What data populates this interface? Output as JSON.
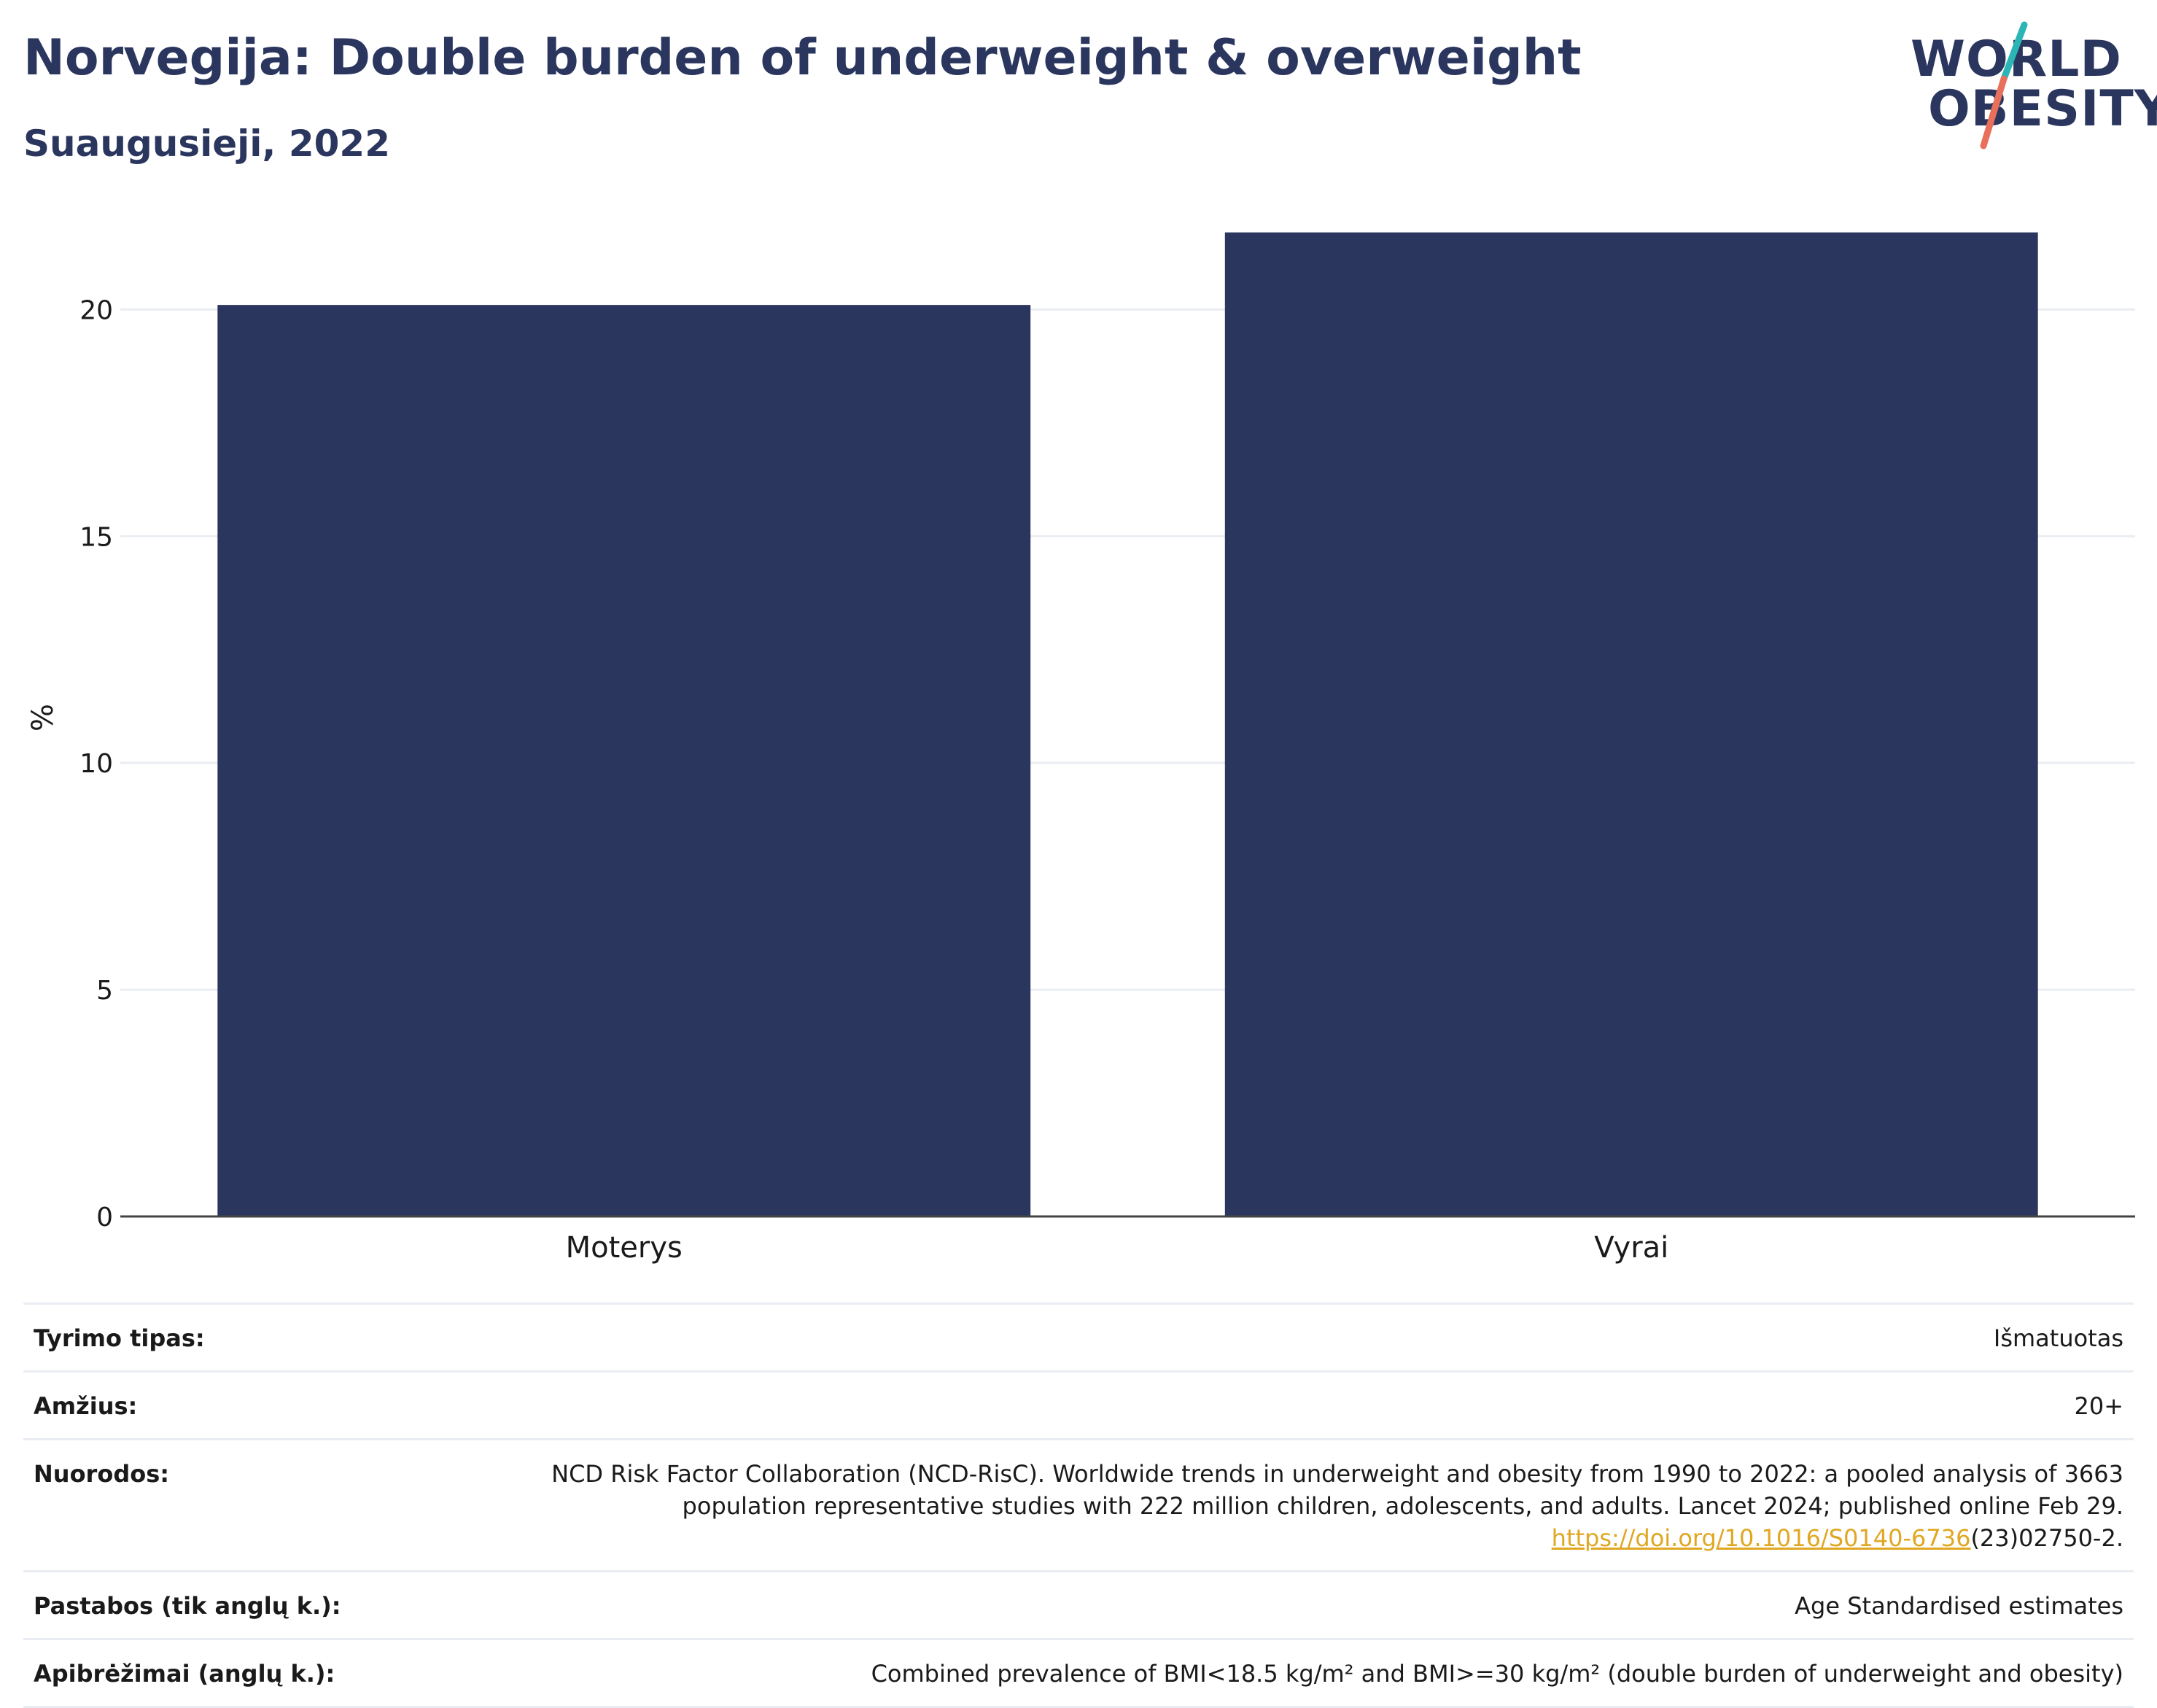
{
  "header": {
    "title": "Norvegija: Double burden of underweight & overweight",
    "subtitle": "Suaugusieji, 2022"
  },
  "logo": {
    "line1": "WORLD",
    "line2": "OBESITY",
    "accent_colors": [
      "#2bb5b5",
      "#e8705a"
    ]
  },
  "chart_data": {
    "type": "bar",
    "categories": [
      "Moterys",
      "Vyrai"
    ],
    "values": [
      20.1,
      21.7
    ],
    "ylabel": "%",
    "ylim": [
      0,
      22
    ],
    "yticks": [
      0,
      5,
      10,
      15,
      20
    ],
    "grid": true,
    "bar_color": "#2b365f"
  },
  "info": {
    "rows": [
      {
        "label": "Tyrimo tipas:",
        "value": "Išmatuotas"
      },
      {
        "label": "Amžius:",
        "value": "20+"
      },
      {
        "label": "Nuorodos:",
        "value": "NCD Risk Factor Collaboration (NCD-RisC). Worldwide trends in underweight and obesity from 1990 to 2022: a pooled analysis of 3663 population representative studies with 222 million children, adolescents, and adults. Lancet 2024; published online Feb 29.",
        "link": "https://doi.org/10.1016/S0140-6736",
        "link_suffix": "(23)02750-2."
      },
      {
        "label": "Pastabos (tik anglų k.):",
        "value": "Age Standardised estimates"
      },
      {
        "label": "Apibrėžimai (anglų k.):",
        "value": "Combined prevalence of BMI<18.5 kg/m² and BMI>=30 kg/m² (double burden of underweight and obesity)"
      }
    ]
  }
}
